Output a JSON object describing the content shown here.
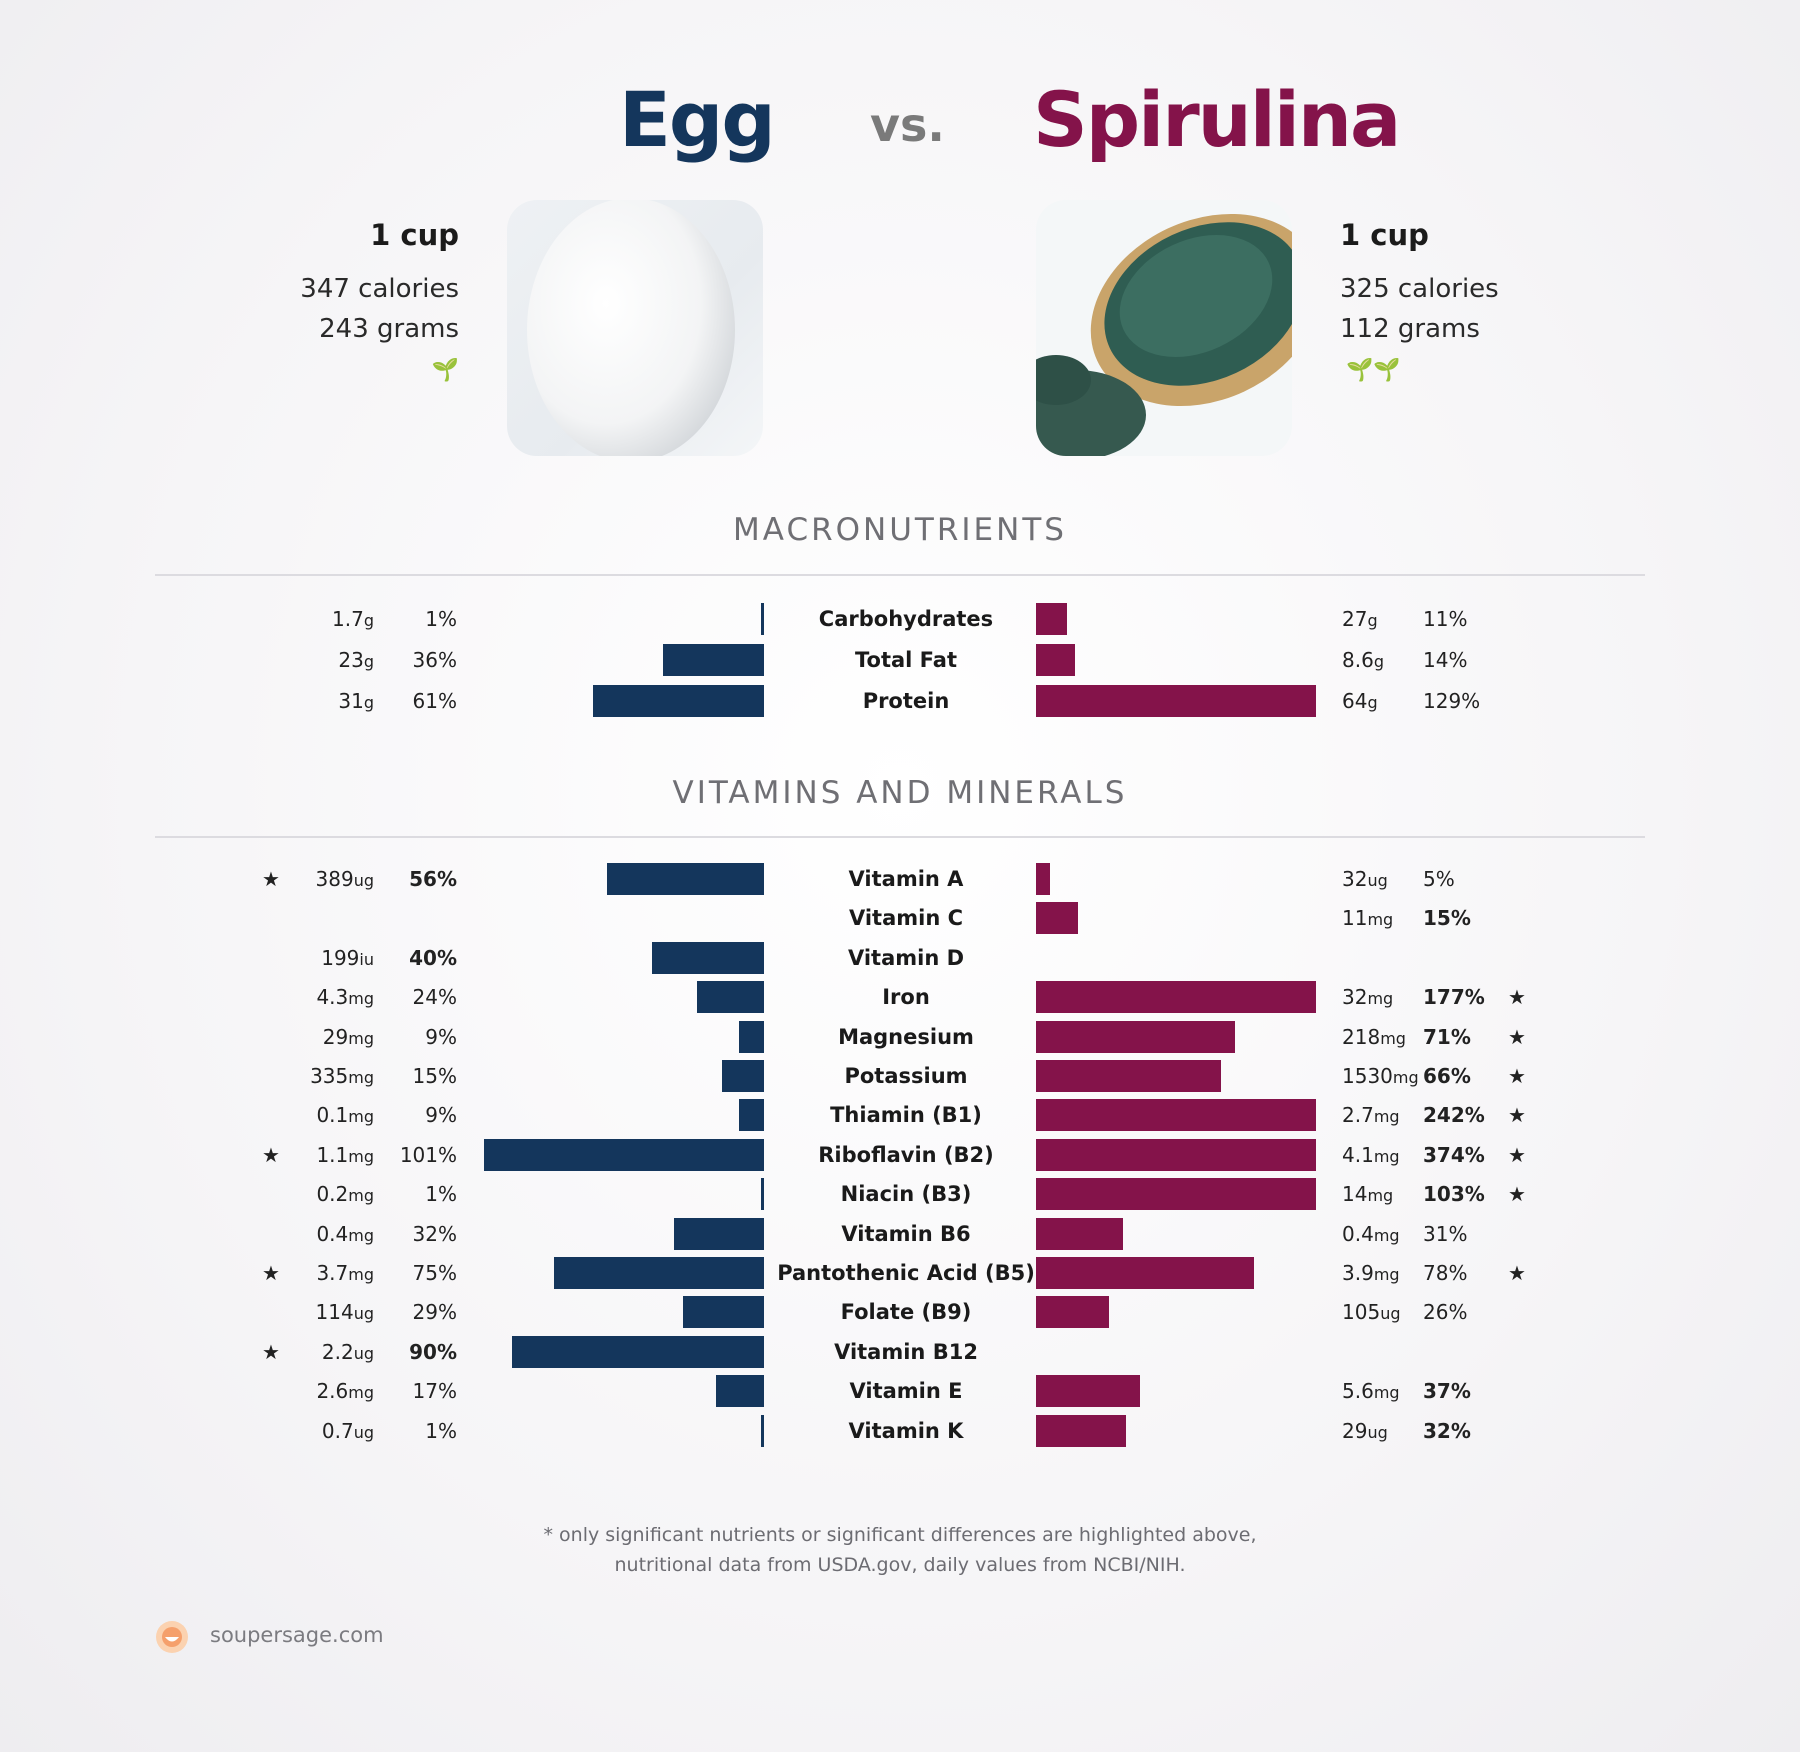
{
  "header": {
    "left_title": "Egg",
    "vs": "vs.",
    "right_title": "Spirulina"
  },
  "colors": {
    "left": "#14365c",
    "right": "#84134a",
    "star": "#f5a06c",
    "sprout": "#1f8a1f"
  },
  "left_food": {
    "serving": "1 cup",
    "calories": "347 calories",
    "grams": "243 grams",
    "sprouts": "🌱"
  },
  "right_food": {
    "serving": "1 cup",
    "calories": "325 calories",
    "grams": "112 grams",
    "sprouts": "🌱🌱"
  },
  "sections": {
    "macros": "MACRONUTRIENTS",
    "vitamins": "VITAMINS AND MINERALS"
  },
  "footnote": {
    "line1": "* only significant nutrients or significant differences are highlighted above,",
    "line2": "nutritional data from USDA.gov, daily values from NCBI/NIH."
  },
  "brand": {
    "name": "soupersage.com"
  },
  "chart_data": {
    "type": "bar",
    "series": [
      {
        "name": "Egg"
      },
      {
        "name": "Spirulina"
      }
    ],
    "macros": [
      {
        "nutrient": "Carbohydrates",
        "left": {
          "amount": "1.7",
          "unit": "g",
          "pct": "1%",
          "value": 1,
          "bold": false,
          "star": false
        },
        "right": {
          "amount": "27",
          "unit": "g",
          "pct": "11%",
          "value": 11,
          "bold": false,
          "star": false
        }
      },
      {
        "nutrient": "Total Fat",
        "left": {
          "amount": "23",
          "unit": "g",
          "pct": "36%",
          "value": 36,
          "bold": false,
          "star": false
        },
        "right": {
          "amount": "8.6",
          "unit": "g",
          "pct": "14%",
          "value": 14,
          "bold": false,
          "star": false
        }
      },
      {
        "nutrient": "Protein",
        "left": {
          "amount": "31",
          "unit": "g",
          "pct": "61%",
          "value": 61,
          "bold": false,
          "star": false
        },
        "right": {
          "amount": "64",
          "unit": "g",
          "pct": "129%",
          "value": 129,
          "bold": false,
          "star": false
        }
      }
    ],
    "vitamins": [
      {
        "nutrient": "Vitamin A",
        "left": {
          "amount": "389",
          "unit": "ug",
          "pct": "56%",
          "value": 56,
          "bold": true,
          "star": true
        },
        "right": {
          "amount": "32",
          "unit": "ug",
          "pct": "5%",
          "value": 5,
          "bold": false,
          "star": false
        }
      },
      {
        "nutrient": "Vitamin C",
        "left": null,
        "right": {
          "amount": "11",
          "unit": "mg",
          "pct": "15%",
          "value": 15,
          "bold": true,
          "star": false
        }
      },
      {
        "nutrient": "Vitamin D",
        "left": {
          "amount": "199",
          "unit": "iu",
          "pct": "40%",
          "value": 40,
          "bold": true,
          "star": false
        },
        "right": null
      },
      {
        "nutrient": "Iron",
        "left": {
          "amount": "4.3",
          "unit": "mg",
          "pct": "24%",
          "value": 24,
          "bold": false,
          "star": false
        },
        "right": {
          "amount": "32",
          "unit": "mg",
          "pct": "177%",
          "value": 177,
          "bold": true,
          "star": true
        }
      },
      {
        "nutrient": "Magnesium",
        "left": {
          "amount": "29",
          "unit": "mg",
          "pct": "9%",
          "value": 9,
          "bold": false,
          "star": false
        },
        "right": {
          "amount": "218",
          "unit": "mg",
          "pct": "71%",
          "value": 71,
          "bold": true,
          "star": true
        }
      },
      {
        "nutrient": "Potassium",
        "left": {
          "amount": "335",
          "unit": "mg",
          "pct": "15%",
          "value": 15,
          "bold": false,
          "star": false
        },
        "right": {
          "amount": "1530",
          "unit": "mg",
          "pct": "66%",
          "value": 66,
          "bold": true,
          "star": true
        }
      },
      {
        "nutrient": "Thiamin (B1)",
        "left": {
          "amount": "0.1",
          "unit": "mg",
          "pct": "9%",
          "value": 9,
          "bold": false,
          "star": false
        },
        "right": {
          "amount": "2.7",
          "unit": "mg",
          "pct": "242%",
          "value": 242,
          "bold": true,
          "star": true
        }
      },
      {
        "nutrient": "Riboflavin (B2)",
        "left": {
          "amount": "1.1",
          "unit": "mg",
          "pct": "101%",
          "value": 101,
          "bold": false,
          "star": true
        },
        "right": {
          "amount": "4.1",
          "unit": "mg",
          "pct": "374%",
          "value": 374,
          "bold": true,
          "star": true
        }
      },
      {
        "nutrient": "Niacin (B3)",
        "left": {
          "amount": "0.2",
          "unit": "mg",
          "pct": "1%",
          "value": 1,
          "bold": false,
          "star": false
        },
        "right": {
          "amount": "14",
          "unit": "mg",
          "pct": "103%",
          "value": 103,
          "bold": true,
          "star": true
        }
      },
      {
        "nutrient": "Vitamin B6",
        "left": {
          "amount": "0.4",
          "unit": "mg",
          "pct": "32%",
          "value": 32,
          "bold": false,
          "star": false
        },
        "right": {
          "amount": "0.4",
          "unit": "mg",
          "pct": "31%",
          "value": 31,
          "bold": false,
          "star": false
        }
      },
      {
        "nutrient": "Pantothenic Acid (B5)",
        "left": {
          "amount": "3.7",
          "unit": "mg",
          "pct": "75%",
          "value": 75,
          "bold": false,
          "star": true
        },
        "right": {
          "amount": "3.9",
          "unit": "mg",
          "pct": "78%",
          "value": 78,
          "bold": false,
          "star": true
        }
      },
      {
        "nutrient": "Folate (B9)",
        "left": {
          "amount": "114",
          "unit": "ug",
          "pct": "29%",
          "value": 29,
          "bold": false,
          "star": false
        },
        "right": {
          "amount": "105",
          "unit": "ug",
          "pct": "26%",
          "value": 26,
          "bold": false,
          "star": false
        }
      },
      {
        "nutrient": "Vitamin B12",
        "left": {
          "amount": "2.2",
          "unit": "ug",
          "pct": "90%",
          "value": 90,
          "bold": true,
          "star": true
        },
        "right": null
      },
      {
        "nutrient": "Vitamin E",
        "left": {
          "amount": "2.6",
          "unit": "mg",
          "pct": "17%",
          "value": 17,
          "bold": false,
          "star": false
        },
        "right": {
          "amount": "5.6",
          "unit": "mg",
          "pct": "37%",
          "value": 37,
          "bold": true,
          "star": false
        }
      },
      {
        "nutrient": "Vitamin K",
        "left": {
          "amount": "0.7",
          "unit": "ug",
          "pct": "1%",
          "value": 1,
          "bold": false,
          "star": false
        },
        "right": {
          "amount": "29",
          "unit": "ug",
          "pct": "32%",
          "value": 32,
          "bold": true,
          "star": false
        }
      }
    ]
  }
}
